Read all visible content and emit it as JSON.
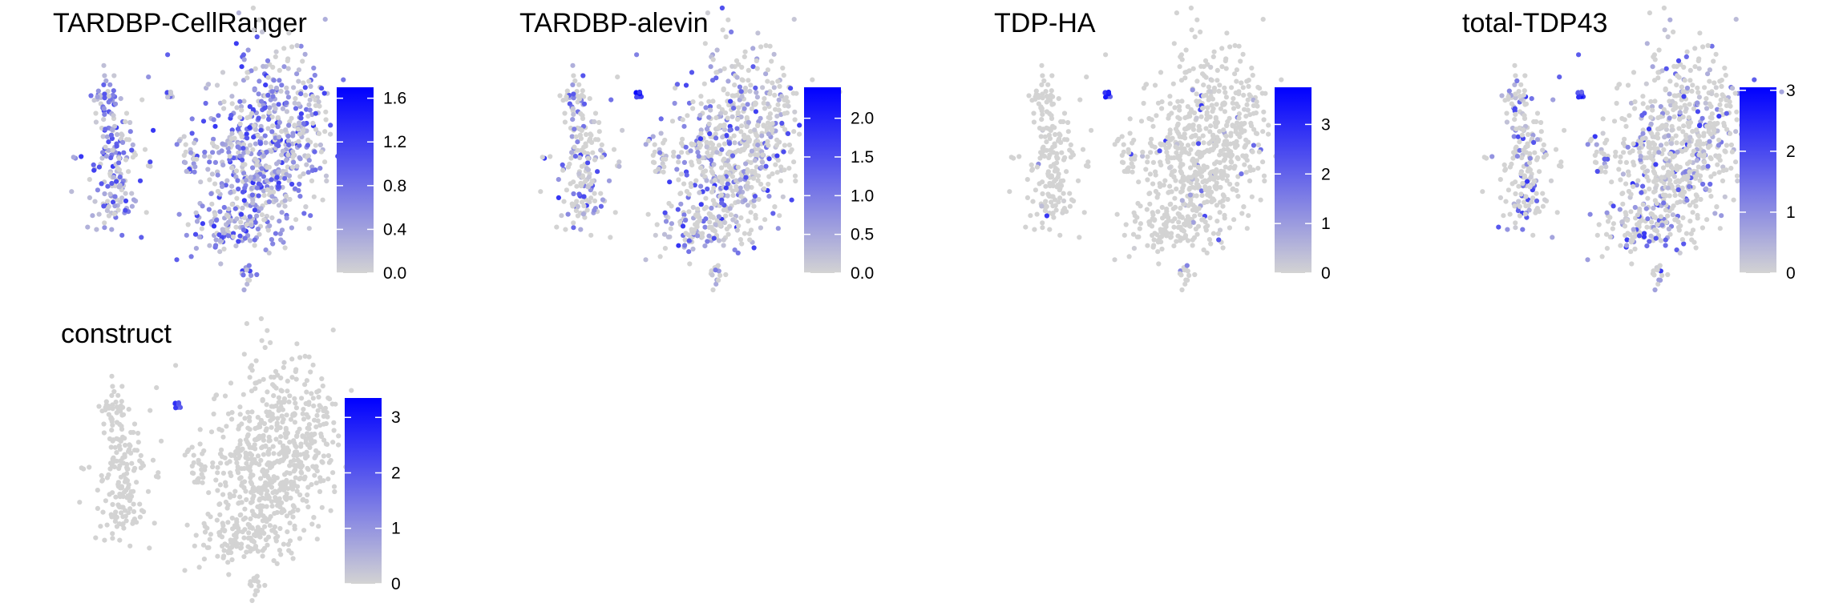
{
  "chart_data": [
    {
      "type": "scatter",
      "title": "TARDBP-CellRanger",
      "low_color": "#d3d3d3",
      "high_color": "#0000ff",
      "color_range": [
        0,
        1.7
      ],
      "legend_ticks": [
        "0.0",
        "0.4",
        "0.8",
        "1.2",
        "1.6"
      ],
      "legend_tick_values": [
        0,
        0.4,
        0.8,
        1.2,
        1.6
      ],
      "expression_density": 0.85,
      "expression_hotspots": []
    },
    {
      "type": "scatter",
      "title": "TARDBP-alevin",
      "low_color": "#d3d3d3",
      "high_color": "#0000ff",
      "color_range": [
        0,
        2.4
      ],
      "legend_ticks": [
        "0.0",
        "0.5",
        "1.0",
        "1.5",
        "2.0"
      ],
      "legend_tick_values": [
        0,
        0.5,
        1.0,
        1.5,
        2.0
      ],
      "expression_density": 0.45,
      "expression_hotspots": [
        "small-cluster"
      ]
    },
    {
      "type": "scatter",
      "title": "TDP-HA",
      "low_color": "#d3d3d3",
      "high_color": "#0000ff",
      "color_range": [
        0,
        3.75
      ],
      "legend_ticks": [
        "0",
        "1",
        "2",
        "3"
      ],
      "legend_tick_values": [
        0,
        1,
        2,
        3
      ],
      "expression_density": 0.05,
      "expression_hotspots": [
        "small-cluster"
      ]
    },
    {
      "type": "scatter",
      "title": "total-TDP43",
      "low_color": "#d3d3d3",
      "high_color": "#0000ff",
      "color_range": [
        0,
        3.05
      ],
      "legend_ticks": [
        "0",
        "1",
        "2",
        "3"
      ],
      "legend_tick_values": [
        0,
        1,
        2,
        3
      ],
      "expression_density": 0.35,
      "expression_hotspots": [
        "small-cluster"
      ]
    },
    {
      "type": "scatter",
      "title": "construct",
      "low_color": "#d3d3d3",
      "high_color": "#0000ff",
      "color_range": [
        0,
        3.35
      ],
      "legend_ticks": [
        "0",
        "1",
        "2",
        "3"
      ],
      "legend_tick_values": [
        0,
        1,
        2,
        3
      ],
      "expression_density": 0.0,
      "expression_hotspots": [
        "small-cluster"
      ]
    }
  ]
}
